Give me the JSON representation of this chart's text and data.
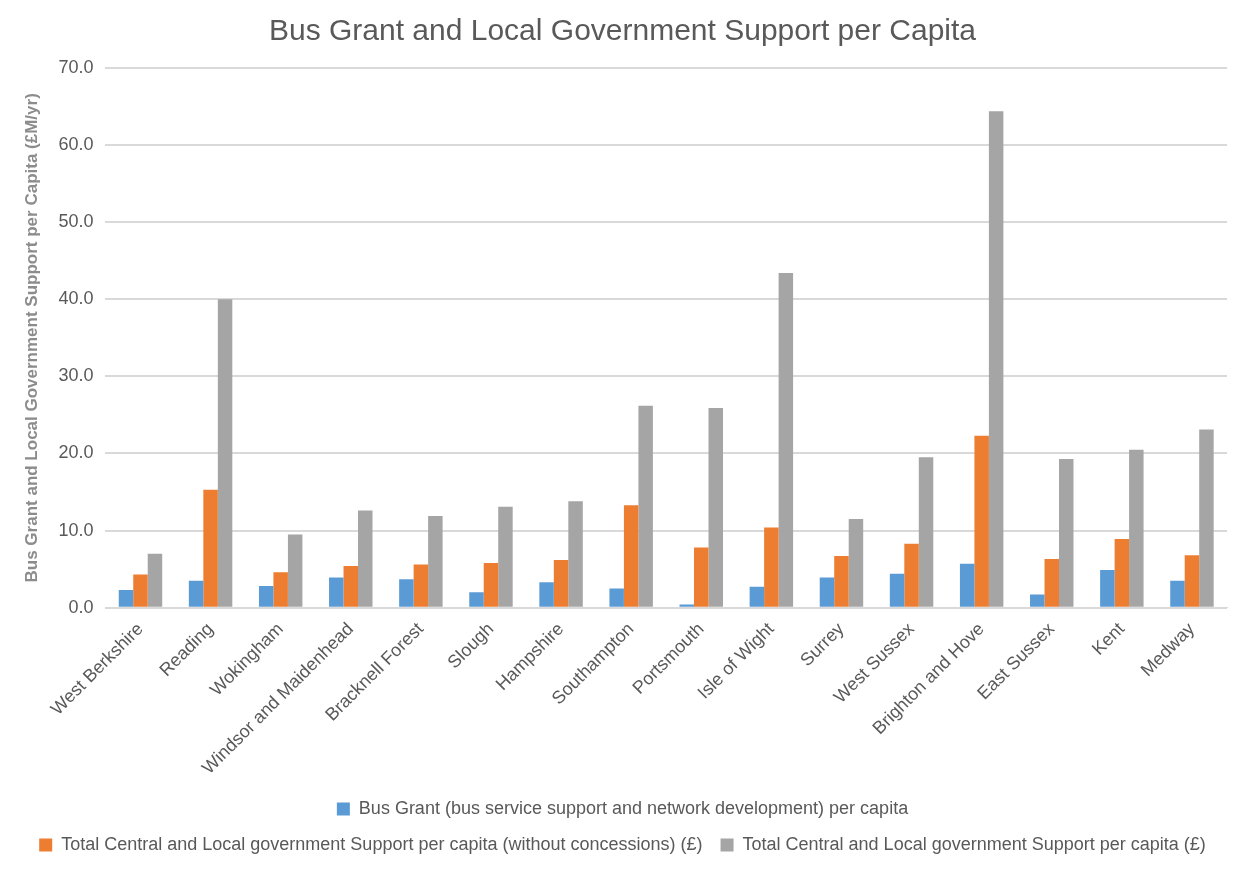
{
  "chart_data": {
    "type": "bar",
    "title": "Bus Grant and Local Government Support per Capita",
    "ylabel": "Bus Grant and Local Government Support per Capita (£M/yr)",
    "categories": [
      "West Berkshire",
      "Reading",
      "Wokingham",
      "Windsor and Maidenhead",
      "Bracknell Forest",
      "Slough",
      "Hampshire",
      "Southampton",
      "Portsmouth",
      "Isle of Wight",
      "Surrey",
      "West Sussex",
      "Brighton and Hove",
      "East Sussex",
      "Kent",
      "Medway"
    ],
    "series": [
      {
        "name": "Bus Grant (bus service support and network development) per capita",
        "color": "#5b9bd5",
        "values": [
          2.3,
          3.5,
          2.8,
          3.9,
          3.7,
          2.0,
          3.3,
          2.5,
          0.4,
          2.7,
          3.9,
          4.4,
          5.7,
          1.7,
          4.9,
          3.5
        ]
      },
      {
        "name": "Total Central and Local government Support per capita (without concessions) (£)",
        "color": "#ed7d31",
        "values": [
          4.3,
          15.3,
          4.6,
          5.4,
          5.6,
          5.8,
          6.2,
          13.3,
          7.8,
          10.4,
          6.7,
          8.3,
          22.3,
          6.3,
          8.9,
          6.8
        ]
      },
      {
        "name": "Total Central and Local government Support per capita (£)",
        "color": "#a5a5a5",
        "values": [
          7.0,
          40.0,
          9.5,
          12.6,
          11.9,
          13.1,
          13.8,
          26.2,
          25.9,
          43.4,
          11.5,
          19.5,
          64.4,
          19.3,
          20.5,
          23.1
        ]
      }
    ],
    "ylim": [
      0,
      70
    ],
    "yticks": [
      {
        "value": 0,
        "label": "0.0"
      },
      {
        "value": 10,
        "label": "10.0"
      },
      {
        "value": 20,
        "label": "20.0"
      },
      {
        "value": 30,
        "label": "30.0"
      },
      {
        "value": 40,
        "label": "40.0"
      },
      {
        "value": 50,
        "label": "50.0"
      },
      {
        "value": 60,
        "label": "60.0"
      },
      {
        "value": 70,
        "label": "70.0"
      }
    ],
    "grid": "y",
    "legend": "bottom"
  }
}
